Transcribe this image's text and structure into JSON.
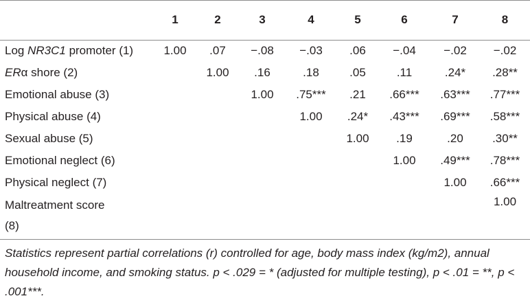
{
  "columns": [
    "",
    "1",
    "2",
    "3",
    "4",
    "5",
    "6",
    "7",
    "8"
  ],
  "rows": [
    {
      "label_pre": "Log ",
      "label_it": "NR3C1",
      "label_post": " promoter (1)",
      "cells": [
        "1.00",
        ".07",
        "−.08",
        "−.03",
        ".06",
        "−.04",
        "−.02",
        "−.02"
      ]
    },
    {
      "label_pre": "",
      "label_it": "ER",
      "label_post": "α shore (2)",
      "cells": [
        "",
        "1.00",
        ".16",
        ".18",
        ".05",
        ".11",
        ".24*",
        ".28**"
      ]
    },
    {
      "label_pre": "Emotional abuse (3)",
      "label_it": "",
      "label_post": "",
      "cells": [
        "",
        "",
        "1.00",
        ".75***",
        ".21",
        ".66***",
        ".63***",
        ".77***"
      ]
    },
    {
      "label_pre": "Physical abuse (4)",
      "label_it": "",
      "label_post": "",
      "cells": [
        "",
        "",
        "",
        "1.00",
        ".24*",
        ".43***",
        ".69***",
        ".58***"
      ]
    },
    {
      "label_pre": "Sexual abuse (5)",
      "label_it": "",
      "label_post": "",
      "cells": [
        "",
        "",
        "",
        "",
        "1.00",
        ".19",
        ".20",
        ".30**"
      ]
    },
    {
      "label_pre": "Emotional neglect (6)",
      "label_it": "",
      "label_post": "",
      "cells": [
        "",
        "",
        "",
        "",
        "",
        "1.00",
        ".49***",
        ".78***"
      ]
    },
    {
      "label_pre": "Physical neglect (7)",
      "label_it": "",
      "label_post": "",
      "cells": [
        "",
        "",
        "",
        "",
        "",
        "",
        "1.00",
        ".66***"
      ]
    },
    {
      "label_pre": "Maltreatment score (8)",
      "label_it": "",
      "label_post": "",
      "cells": [
        "",
        "",
        "",
        "",
        "",
        "",
        "",
        "1.00"
      ]
    }
  ],
  "footnote": "Statistics represent partial correlations (r) controlled for age, body mass index (kg/m2), annual household income, and smoking status. p < .029 = * (adjusted for multiple testing), p < .01 = **, p < .001***."
}
